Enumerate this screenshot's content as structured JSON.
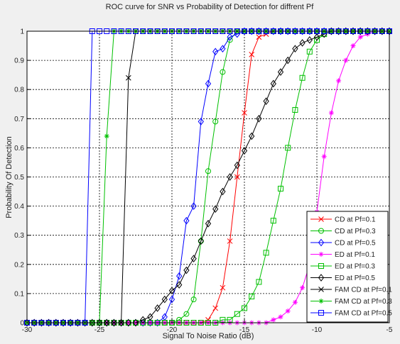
{
  "chart_data": {
    "type": "line",
    "title": "ROC curve for SNR vs Probability of Detection for diffrent Pf",
    "xlabel": "Signal To Noise Ratio (dB)",
    "ylabel": "Probability Of Detection",
    "xlim": [
      -30,
      -5
    ],
    "ylim": [
      0,
      1
    ],
    "xticks": [
      -30,
      -25,
      -20,
      -15,
      -10,
      -5
    ],
    "yticks": [
      0,
      0.1,
      0.2,
      0.3,
      0.4,
      0.5,
      0.6,
      0.7,
      0.8,
      0.9,
      1
    ],
    "grid": true,
    "legend_position": "bottom-right",
    "series": [
      {
        "name": "CD at Pf=0.1",
        "color": "#ff0000",
        "marker": "x",
        "x": [
          -30,
          -29.5,
          -29,
          -28.5,
          -28,
          -27.5,
          -27,
          -26.5,
          -26,
          -25.5,
          -25,
          -24.5,
          -24,
          -23.5,
          -23,
          -22.5,
          -22,
          -21.5,
          -21,
          -20.5,
          -20,
          -19.5,
          -19,
          -18.5,
          -18,
          -17.5,
          -17,
          -16.5,
          -16,
          -15.5,
          -15,
          -14.5,
          -14,
          -13.5,
          -13,
          -12.5,
          -12,
          -11.5,
          -11,
          -10.5,
          -10,
          -9.5,
          -9,
          -8.5,
          -8,
          -7.5,
          -7,
          -6.5,
          -6,
          -5.5,
          -5
        ],
        "y": [
          0,
          0,
          0,
          0,
          0,
          0,
          0,
          0,
          0,
          0,
          0,
          0,
          0,
          0,
          0,
          0,
          0,
          0,
          0,
          0,
          0,
          0,
          0,
          0,
          0,
          0.01,
          0.05,
          0.12,
          0.28,
          0.5,
          0.72,
          0.92,
          0.98,
          0.99,
          1,
          1,
          1,
          1,
          1,
          1,
          1,
          1,
          1,
          1,
          1,
          1,
          1,
          1,
          1,
          1,
          1
        ]
      },
      {
        "name": "CD at Pf=0.3",
        "color": "#00c000",
        "marker": "o",
        "x": [
          -30,
          -29.5,
          -29,
          -28.5,
          -28,
          -27.5,
          -27,
          -26.5,
          -26,
          -25.5,
          -25,
          -24.5,
          -24,
          -23.5,
          -23,
          -22.5,
          -22,
          -21.5,
          -21,
          -20.5,
          -20,
          -19.5,
          -19,
          -18.5,
          -18,
          -17.5,
          -17,
          -16.5,
          -16,
          -15.5,
          -15,
          -14.5,
          -14,
          -13.5,
          -13,
          -12.5,
          -12,
          -11.5,
          -11,
          -10.5,
          -10,
          -9.5,
          -9,
          -8.5,
          -8,
          -7.5,
          -7,
          -6.5,
          -6,
          -5.5,
          -5
        ],
        "y": [
          0,
          0,
          0,
          0,
          0,
          0,
          0,
          0,
          0,
          0,
          0,
          0,
          0,
          0,
          0,
          0,
          0,
          0,
          0,
          0,
          0,
          0.01,
          0.03,
          0.08,
          0.28,
          0.52,
          0.69,
          0.86,
          0.97,
          1,
          1,
          1,
          1,
          1,
          1,
          1,
          1,
          1,
          1,
          1,
          1,
          1,
          1,
          1,
          1,
          1,
          1,
          1,
          1,
          1,
          1
        ]
      },
      {
        "name": "CD at Pf=0.5",
        "color": "#0000ff",
        "marker": "d",
        "x": [
          -30,
          -29.5,
          -29,
          -28.5,
          -28,
          -27.5,
          -27,
          -26.5,
          -26,
          -25.5,
          -25,
          -24.5,
          -24,
          -23.5,
          -23,
          -22.5,
          -22,
          -21.5,
          -21,
          -20.5,
          -20,
          -19.5,
          -19,
          -18.5,
          -18,
          -17.5,
          -17,
          -16.5,
          -16,
          -15.5,
          -15,
          -14.5,
          -14,
          -13.5,
          -13,
          -12.5,
          -12,
          -11.5,
          -11,
          -10.5,
          -10,
          -9.5,
          -9,
          -8.5,
          -8,
          -7.5,
          -7,
          -6.5,
          -6,
          -5.5,
          -5
        ],
        "y": [
          0,
          0,
          0,
          0,
          0,
          0,
          0,
          0,
          0,
          0,
          0,
          0,
          0,
          0,
          0,
          0,
          0,
          0,
          0,
          0.02,
          0.08,
          0.16,
          0.35,
          0.4,
          0.69,
          0.82,
          0.93,
          0.94,
          0.98,
          0.99,
          1,
          1,
          1,
          1,
          1,
          1,
          1,
          1,
          1,
          1,
          1,
          1,
          1,
          1,
          1,
          1,
          1,
          1,
          1,
          1,
          1
        ]
      },
      {
        "name": "ED at Pf=0.1",
        "color": "#ff00ff",
        "marker": "*",
        "x": [
          -30,
          -29.5,
          -29,
          -28.5,
          -28,
          -27.5,
          -27,
          -26.5,
          -26,
          -25.5,
          -25,
          -24.5,
          -24,
          -23.5,
          -23,
          -22.5,
          -22,
          -21.5,
          -21,
          -20.5,
          -20,
          -19.5,
          -19,
          -18.5,
          -18,
          -17.5,
          -17,
          -16.5,
          -16,
          -15.5,
          -15,
          -14.5,
          -14,
          -13.5,
          -13,
          -12.5,
          -12,
          -11.5,
          -11,
          -10.5,
          -10,
          -9.5,
          -9,
          -8.5,
          -8,
          -7.5,
          -7,
          -6.5,
          -6,
          -5.5,
          -5
        ],
        "y": [
          0,
          0,
          0,
          0,
          0,
          0,
          0,
          0,
          0,
          0,
          0,
          0,
          0,
          0,
          0,
          0,
          0,
          0,
          0,
          0,
          0,
          0,
          0,
          0,
          0,
          0,
          0,
          0,
          0,
          0,
          0,
          0,
          0,
          0,
          0.01,
          0.02,
          0.04,
          0.07,
          0.12,
          0.2,
          0.38,
          0.57,
          0.72,
          0.83,
          0.9,
          0.95,
          0.98,
          0.99,
          1,
          1,
          1
        ]
      },
      {
        "name": "ED at Pf=0.3",
        "color": "#00c000",
        "marker": "s",
        "x": [
          -30,
          -29.5,
          -29,
          -28.5,
          -28,
          -27.5,
          -27,
          -26.5,
          -26,
          -25.5,
          -25,
          -24.5,
          -24,
          -23.5,
          -23,
          -22.5,
          -22,
          -21.5,
          -21,
          -20.5,
          -20,
          -19.5,
          -19,
          -18.5,
          -18,
          -17.5,
          -17,
          -16.5,
          -16,
          -15.5,
          -15,
          -14.5,
          -14,
          -13.5,
          -13,
          -12.5,
          -12,
          -11.5,
          -11,
          -10.5,
          -10,
          -9.5,
          -9,
          -8.5,
          -8,
          -7.5,
          -7,
          -6.5,
          -6,
          -5.5,
          -5
        ],
        "y": [
          0,
          0,
          0,
          0,
          0,
          0,
          0,
          0,
          0,
          0,
          0,
          0,
          0,
          0,
          0,
          0,
          0,
          0,
          0,
          0,
          0,
          0,
          0,
          0,
          0,
          0,
          0,
          0.01,
          0.01,
          0.03,
          0.05,
          0.09,
          0.14,
          0.24,
          0.35,
          0.46,
          0.6,
          0.73,
          0.84,
          0.93,
          0.97,
          0.99,
          1,
          1,
          1,
          1,
          1,
          1,
          1,
          1,
          1
        ]
      },
      {
        "name": "ED at Pf=0.5",
        "color": "#000000",
        "marker": "d",
        "x": [
          -30,
          -29.5,
          -29,
          -28.5,
          -28,
          -27.5,
          -27,
          -26.5,
          -26,
          -25.5,
          -25,
          -24.5,
          -24,
          -23.5,
          -23,
          -22.5,
          -22,
          -21.5,
          -21,
          -20.5,
          -20,
          -19.5,
          -19,
          -18.5,
          -18,
          -17.5,
          -17,
          -16.5,
          -16,
          -15.5,
          -15,
          -14.5,
          -14,
          -13.5,
          -13,
          -12.5,
          -12,
          -11.5,
          -11,
          -10.5,
          -10,
          -9.5,
          -9,
          -8.5,
          -8,
          -7.5,
          -7,
          -6.5,
          -6,
          -5.5,
          -5
        ],
        "y": [
          0,
          0,
          0,
          0,
          0,
          0,
          0,
          0,
          0,
          0,
          0,
          0,
          0,
          0,
          0,
          0,
          0.01,
          0.02,
          0.05,
          0.08,
          0.11,
          0.13,
          0.18,
          0.22,
          0.28,
          0.34,
          0.39,
          0.45,
          0.5,
          0.54,
          0.59,
          0.64,
          0.7,
          0.76,
          0.82,
          0.86,
          0.9,
          0.94,
          0.96,
          0.97,
          0.98,
          0.99,
          1,
          1,
          1,
          1,
          1,
          1,
          1,
          1,
          1
        ]
      },
      {
        "name": "FAM CD at Pf=0.1",
        "color": "#000000",
        "marker": "x",
        "x": [
          -30,
          -29.5,
          -29,
          -28.5,
          -28,
          -27.5,
          -27,
          -26.5,
          -26,
          -25.5,
          -25,
          -24.5,
          -24,
          -23.5,
          -23,
          -22.5,
          -22,
          -21.5,
          -21,
          -20.5,
          -20,
          -19.5,
          -19,
          -18.5,
          -18,
          -17.5,
          -17,
          -16.5,
          -16,
          -15.5,
          -15,
          -14.5,
          -14,
          -13.5,
          -13,
          -12.5,
          -12,
          -11.5,
          -11,
          -10.5,
          -10,
          -9.5,
          -9,
          -8.5,
          -8,
          -7.5,
          -7,
          -6.5,
          -6,
          -5.5,
          -5
        ],
        "y": [
          0,
          0,
          0,
          0,
          0,
          0,
          0,
          0,
          0,
          0,
          0,
          0,
          0,
          0,
          0.84,
          1,
          1,
          1,
          1,
          1,
          1,
          1,
          1,
          1,
          1,
          1,
          1,
          1,
          1,
          1,
          1,
          1,
          1,
          1,
          1,
          1,
          1,
          1,
          1,
          1,
          1,
          1,
          1,
          1,
          1,
          1,
          1,
          1,
          1,
          1,
          1
        ]
      },
      {
        "name": "FAM CD at Pf=0.3",
        "color": "#00c000",
        "marker": "*",
        "x": [
          -30,
          -29.5,
          -29,
          -28.5,
          -28,
          -27.5,
          -27,
          -26.5,
          -26,
          -25.5,
          -25,
          -24.5,
          -24,
          -23.5,
          -23,
          -22.5,
          -22,
          -21.5,
          -21,
          -20.5,
          -20,
          -19.5,
          -19,
          -18.5,
          -18,
          -17.5,
          -17,
          -16.5,
          -16,
          -15.5,
          -15,
          -14.5,
          -14,
          -13.5,
          -13,
          -12.5,
          -12,
          -11.5,
          -11,
          -10.5,
          -10,
          -9.5,
          -9,
          -8.5,
          -8,
          -7.5,
          -7,
          -6.5,
          -6,
          -5.5,
          -5
        ],
        "y": [
          0,
          0,
          0,
          0,
          0,
          0,
          0,
          0,
          0,
          0,
          0,
          0.64,
          1,
          1,
          1,
          1,
          1,
          1,
          1,
          1,
          1,
          1,
          1,
          1,
          1,
          1,
          1,
          1,
          1,
          1,
          1,
          1,
          1,
          1,
          1,
          1,
          1,
          1,
          1,
          1,
          1,
          1,
          1,
          1,
          1,
          1,
          1,
          1,
          1,
          1,
          1
        ]
      },
      {
        "name": "FAM CD at Pf=0.5",
        "color": "#0000ff",
        "marker": "s",
        "x": [
          -30,
          -29.5,
          -29,
          -28.5,
          -28,
          -27.5,
          -27,
          -26.5,
          -26,
          -25.5,
          -25,
          -24.5,
          -24,
          -23.5,
          -23,
          -22.5,
          -22,
          -21.5,
          -21,
          -20.5,
          -20,
          -19.5,
          -19,
          -18.5,
          -18,
          -17.5,
          -17,
          -16.5,
          -16,
          -15.5,
          -15,
          -14.5,
          -14,
          -13.5,
          -13,
          -12.5,
          -12,
          -11.5,
          -11,
          -10.5,
          -10,
          -9.5,
          -9,
          -8.5,
          -8,
          -7.5,
          -7,
          -6.5,
          -6,
          -5.5,
          -5
        ],
        "y": [
          0,
          0,
          0,
          0,
          0,
          0,
          0,
          0,
          0,
          1,
          1,
          1,
          1,
          1,
          1,
          1,
          1,
          1,
          1,
          1,
          1,
          1,
          1,
          1,
          1,
          1,
          1,
          1,
          1,
          1,
          1,
          1,
          1,
          1,
          1,
          1,
          1,
          1,
          1,
          1,
          1,
          1,
          1,
          1,
          1,
          1,
          1,
          1,
          1,
          1,
          1
        ]
      }
    ]
  }
}
